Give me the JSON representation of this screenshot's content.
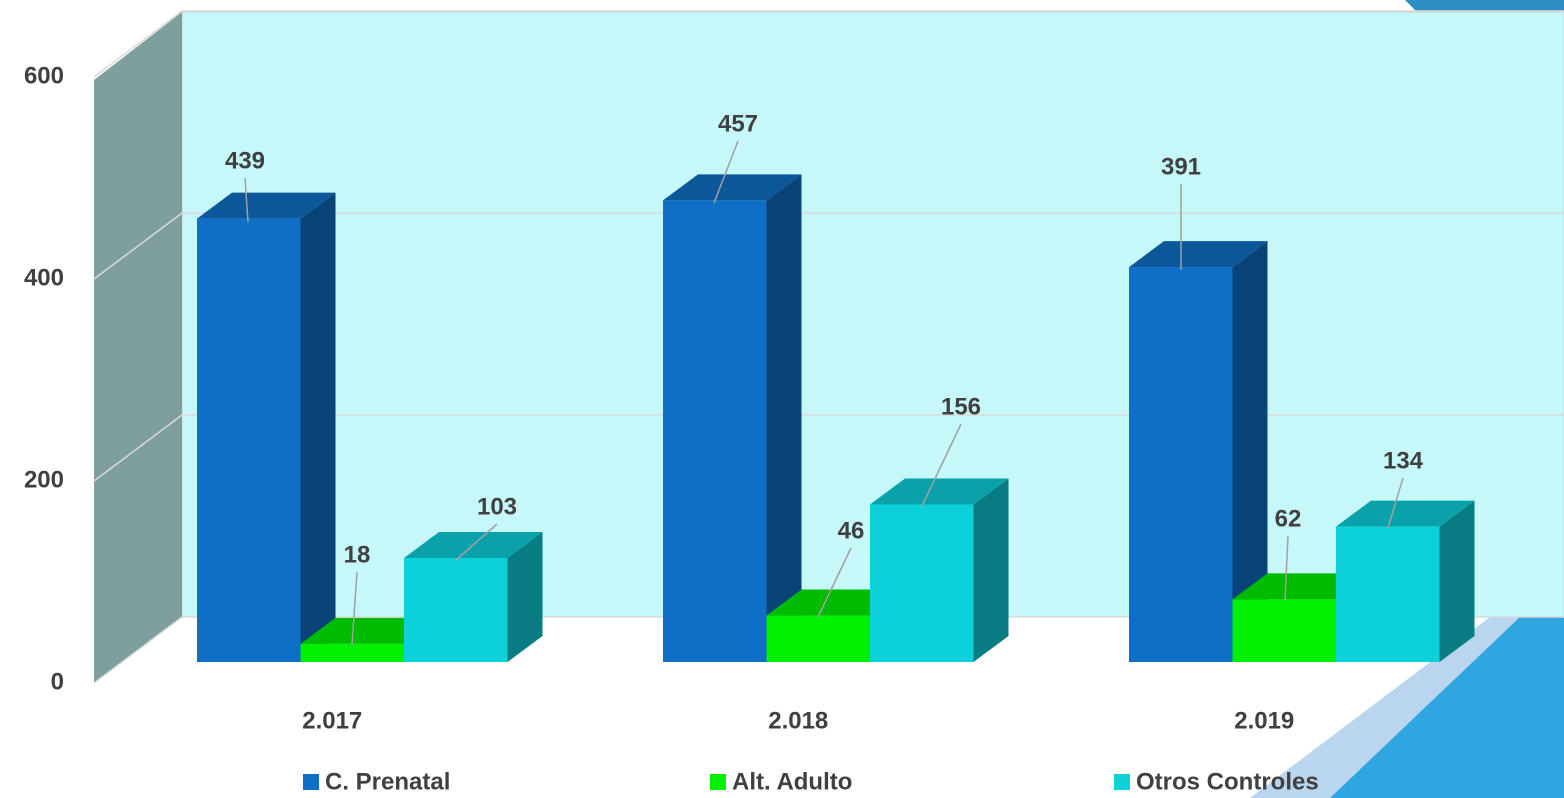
{
  "chart_data": {
    "type": "bar3d",
    "categories": [
      "2.017",
      "2.018",
      "2.019"
    ],
    "series": [
      {
        "name": "C. Prenatal",
        "color": "#0f6fc6",
        "values": [
          439,
          457,
          391
        ]
      },
      {
        "name": "Alt. Adulto",
        "color": "#00f000",
        "values": [
          18,
          46,
          62
        ]
      },
      {
        "name": "Otros Controles",
        "color": "#0cd0da",
        "values": [
          103,
          156,
          134
        ]
      }
    ],
    "ylim": [
      0,
      600
    ],
    "yticks": [
      0,
      200,
      400,
      600
    ],
    "grid": true,
    "legend": "bottom"
  }
}
